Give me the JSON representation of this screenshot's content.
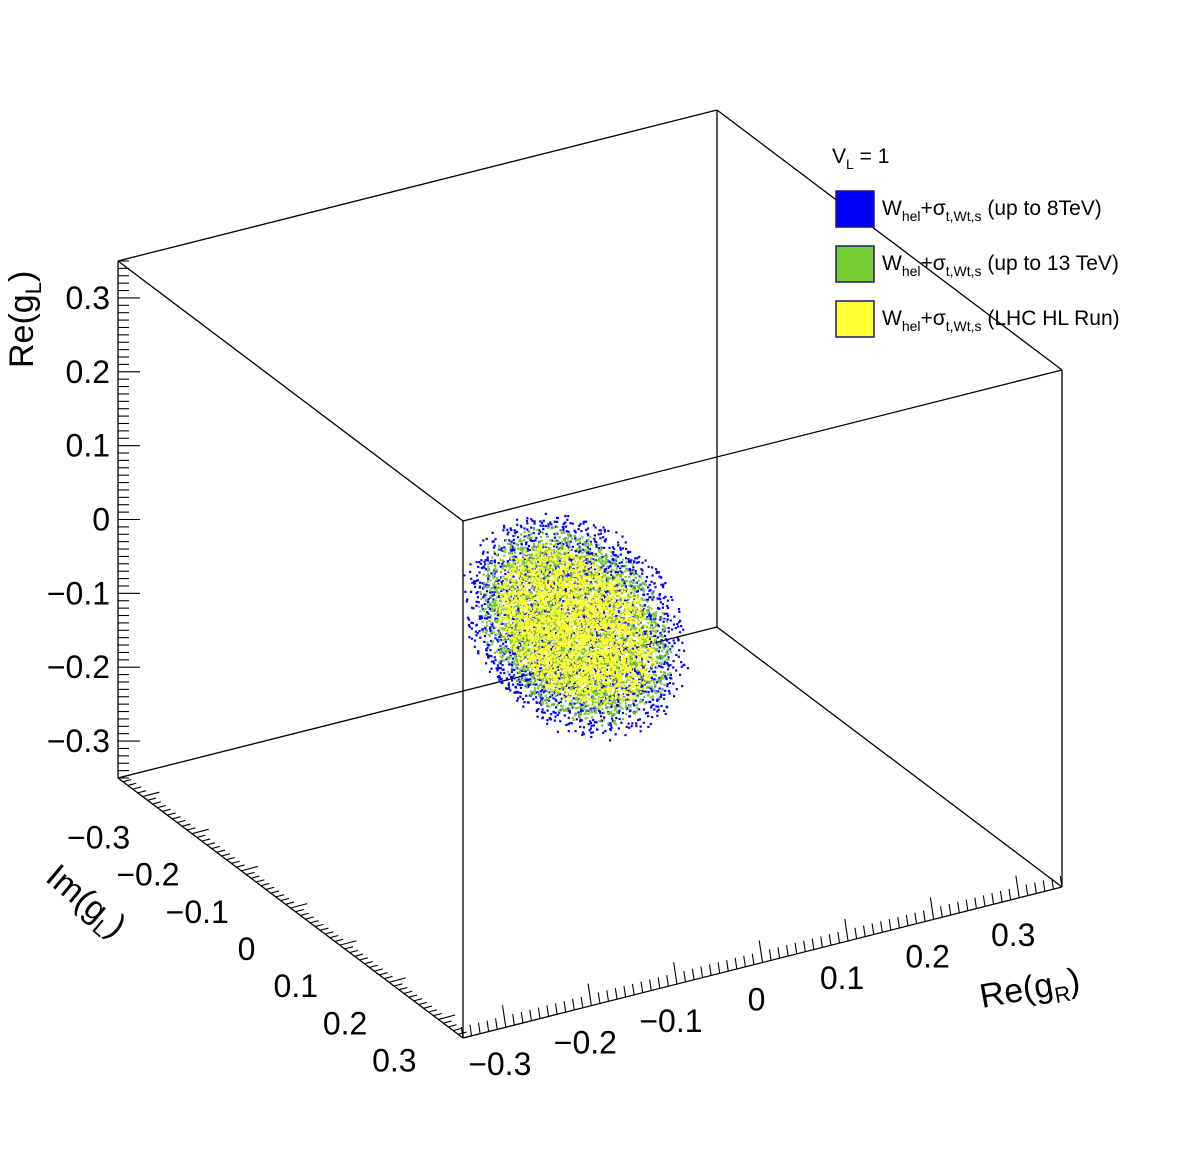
{
  "chart_data": {
    "type": "scatter",
    "dimensions": 3,
    "legend_header": {
      "main": "V",
      "sub": "L",
      "suffix": " = 1"
    },
    "axes": {
      "x": {
        "label_main": "Re(g",
        "label_sub": "R",
        "label_close": ")",
        "range": [
          -0.35,
          0.35
        ],
        "ticks": [
          -0.3,
          -0.2,
          -0.1,
          0,
          0.1,
          0.2,
          0.3
        ],
        "tick_labels": [
          "−0.3",
          "−0.2",
          "−0.1",
          "0",
          "0.1",
          "0.2",
          "0.3"
        ]
      },
      "y": {
        "label_main": "Im(g",
        "label_sub": "L",
        "label_close": ")",
        "range": [
          -0.35,
          0.35
        ],
        "ticks": [
          -0.3,
          -0.2,
          -0.1,
          0,
          0.1,
          0.2,
          0.3
        ],
        "tick_labels": [
          "−0.3",
          "−0.2",
          "−0.1",
          "0",
          "0.1",
          "0.2",
          "0.3"
        ]
      },
      "z": {
        "label_main": "Re(g",
        "label_sub": "L",
        "label_close": ")",
        "range": [
          -0.35,
          0.35
        ],
        "ticks": [
          -0.3,
          -0.2,
          -0.1,
          0,
          0.1,
          0.2,
          0.3
        ],
        "tick_labels": [
          "−0.3",
          "−0.2",
          "−0.1",
          "0",
          "0.1",
          "0.2",
          "0.3"
        ]
      }
    },
    "series": [
      {
        "label_main": "W",
        "label_sub1": "hel",
        "label_mid": "+σ",
        "label_sub2": "t,Wt,s",
        "label_tail": " (up to 8TeV)",
        "color": "#0000ff",
        "center": [
          -0.03,
          0.02,
          -0.05
        ],
        "radius": [
          0.105,
          0.09,
          0.15
        ],
        "n": 2800
      },
      {
        "label_main": "W",
        "label_sub1": "hel",
        "label_mid": "+σ",
        "label_sub2": "t,Wt,s",
        "label_tail": " (up to 13 TeV)",
        "color": "#77cc33",
        "center": [
          -0.03,
          0.02,
          -0.05
        ],
        "radius": [
          0.088,
          0.075,
          0.13
        ],
        "n": 3000
      },
      {
        "label_main": "W",
        "label_sub1": "hel",
        "label_mid": "+σ",
        "label_sub2": "t,Wt,s",
        "label_tail": " (LHC HL Run)",
        "color": "#ffff33",
        "center": [
          -0.03,
          0.02,
          -0.05
        ],
        "radius": [
          0.07,
          0.06,
          0.105
        ],
        "n": 3200
      }
    ]
  }
}
